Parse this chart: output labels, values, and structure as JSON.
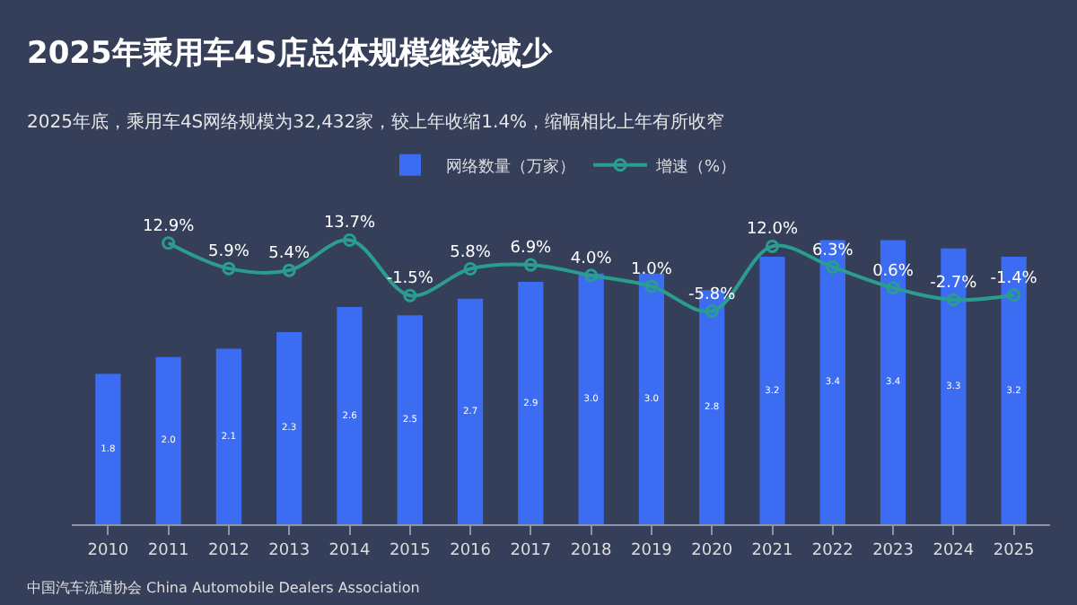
{
  "chart_data": {
    "type": "bar",
    "title": "2025年乘用车4S店总体规模继续减少",
    "subtitle": "2025年底，乘用车4S网络规模为32,432家，较上年收缩1.4%，缩幅相比上年有所收窄",
    "categories": [
      "2010",
      "2011",
      "2012",
      "2013",
      "2014",
      "2015",
      "2016",
      "2017",
      "2018",
      "2019",
      "2020",
      "2021",
      "2022",
      "2023",
      "2024",
      "2025"
    ],
    "series": [
      {
        "name": "网络数量（万家）",
        "color": "#3b6cf2",
        "value_labels": [
          "1.8",
          "2.0",
          "2.1",
          "2.3",
          "2.6",
          "2.5",
          "2.7",
          "2.9",
          "3.0",
          "3.0",
          "2.8",
          "3.2",
          "3.4",
          "3.4",
          "3.3",
          "3.2"
        ],
        "values": [
          1.8,
          2.0,
          2.1,
          2.3,
          2.6,
          2.5,
          2.7,
          2.9,
          3.0,
          3.0,
          2.8,
          3.2,
          3.4,
          3.4,
          3.3,
          3.2
        ]
      },
      {
        "name": "增速（%）",
        "type": "line",
        "axis": "y2",
        "color": "#2a9d8f",
        "marker": "circle",
        "value_labels": [
          null,
          "12.9%",
          "5.9%",
          "5.4%",
          "13.7%",
          "-1.5%",
          "5.8%",
          "6.9%",
          "4.0%",
          "1.0%",
          "-5.8%",
          "12.0%",
          "6.3%",
          "0.6%",
          "-2.7%",
          "-1.4%"
        ],
        "values": [
          null,
          12.9,
          5.9,
          5.4,
          13.7,
          -1.5,
          5.8,
          6.9,
          4.0,
          1.0,
          -5.8,
          12.0,
          6.3,
          0.6,
          -2.7,
          -1.4
        ]
      }
    ],
    "tick_labels": "x",
    "grid": false,
    "legend": "top",
    "annotations": [
      "中国汽车流通协会 China Automobile Dealers Association"
    ]
  }
}
